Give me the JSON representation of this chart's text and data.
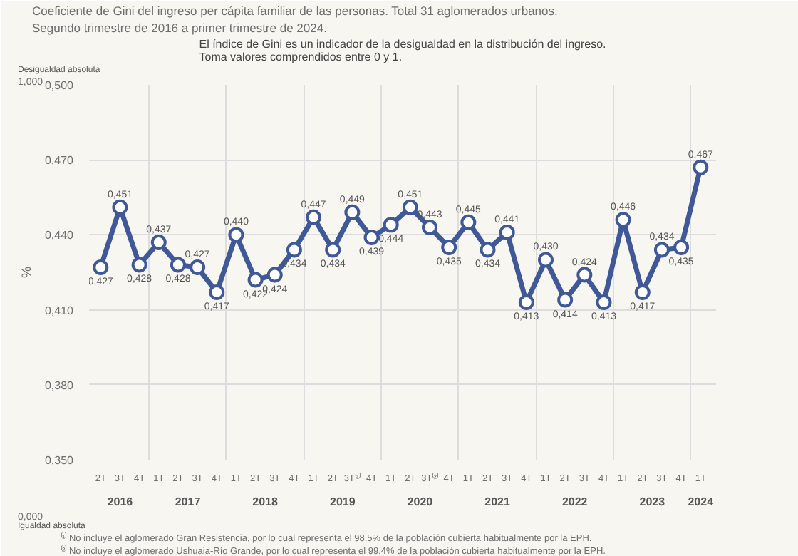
{
  "chart_data": {
    "type": "line",
    "title": "Coeficiente de Gini del ingreso per cápita familiar de las personas. Total 31 aglomerados urbanos.",
    "subtitle": "Segundo trimestre de 2016 a primer trimestre de 2024.",
    "ylabel": "%",
    "categories": [
      "2T",
      "3T",
      "4T",
      "1T",
      "2T",
      "3T",
      "4T",
      "1T",
      "2T",
      "3T",
      "4T",
      "1T",
      "2T",
      "3T⁽¹⁾",
      "4T",
      "1T",
      "2T",
      "3T⁽²⁾",
      "4T",
      "1T",
      "2T",
      "3T",
      "4T",
      "1T",
      "2T",
      "3T",
      "4T",
      "1T",
      "2T",
      "3T",
      "4T",
      "1T"
    ],
    "series": [
      {
        "color": "#3f5998",
        "values": [
          0.427,
          0.451,
          0.428,
          0.437,
          0.428,
          0.427,
          0.417,
          0.44,
          0.422,
          0.424,
          0.434,
          0.447,
          0.434,
          0.449,
          0.439,
          0.444,
          0.451,
          0.443,
          0.435,
          0.445,
          0.434,
          0.441,
          0.413,
          0.43,
          0.414,
          0.424,
          0.413,
          0.446,
          0.417,
          0.434,
          0.435,
          0.467
        ],
        "value_labels": [
          "0,427",
          "0,451",
          "0,428",
          "0,437",
          "0,428",
          "0,427",
          "0,417",
          "0,440",
          "0,422",
          "0,424",
          "0,434",
          "0,447",
          "0,434",
          "0,449",
          "0,439",
          "0,444",
          "0,451",
          "0,443",
          "0,435",
          "0,445",
          "0,434",
          "0,441",
          "0,413",
          "0,430",
          "0,414",
          "0,424",
          "0,413",
          "0,446",
          "0,417",
          "0,434",
          "0,435",
          "0,467"
        ]
      }
    ],
    "ylim": [
      0.35,
      0.5
    ],
    "yticks": [
      {
        "value": 0.35,
        "label": "0,350"
      },
      {
        "value": 0.38,
        "label": "0,380"
      },
      {
        "value": 0.41,
        "label": "0,410"
      },
      {
        "value": 0.44,
        "label": "0,440"
      },
      {
        "value": 0.47,
        "label": "0,470"
      },
      {
        "value": 0.5,
        "label": "0,500"
      }
    ],
    "grid": true,
    "marker": "circle",
    "line_style": "solid",
    "annotations": [
      "El índice de Gini es un indicador de la desigualdad en la distribución del ingreso.\nToma valores comprendidos entre 0 y 1.",
      "Desigualdad absoluta",
      "1,000",
      "0,000",
      "Igualdad absoluta",
      "⁽¹⁾ No incluye el aglomerado Gran Resistencia, por lo cual representa el 98,5% de la población cubierta habitualmente por la EPH.",
      "⁽²⁾ No incluye el aglomerado Ushuaia-Río Grande, por lo cual representa el 99,4% de la población cubierta habitualmente por la EPH.",
      "2016",
      "2017",
      "2018",
      "2019",
      "2020",
      "2021",
      "2022",
      "2023",
      "2024"
    ]
  }
}
